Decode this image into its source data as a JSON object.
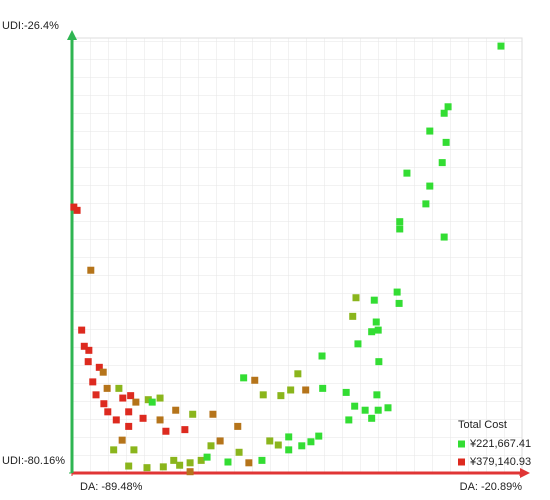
{
  "chart_data": {
    "type": "scatter",
    "xlim": [
      -89.48,
      -20.89
    ],
    "ylim": [
      -80.16,
      -26.4
    ],
    "xticks": [
      {
        "value": -89.48,
        "label": "DA: -89.48%"
      },
      {
        "value": -20.89,
        "label": "DA: -20.89%"
      }
    ],
    "yticks": [
      {
        "value": -80.16,
        "label": "UDI:-80.16%"
      },
      {
        "value": -26.4,
        "label": "UDI:-26.4%"
      }
    ],
    "axis_colors": {
      "x": "#e03535",
      "y": "#2fb552"
    },
    "grid": true,
    "legend": {
      "position": "lower right",
      "title": "Total Cost",
      "items": [
        {
          "label": "¥221,667.41",
          "color": "#33dd33"
        },
        {
          "label": "¥379,140.93",
          "color": "#dd2a1f"
        }
      ]
    },
    "series": [
      {
        "x": [
          -23.8,
          -31.9,
          -32.5,
          -34.7,
          -32.2,
          -38.2,
          -32.8,
          -34.7,
          -35.3,
          -39.3,
          -39.3,
          -32.5,
          -89.2,
          -88.7,
          -86.6,
          -39.7,
          -39.4,
          -43.2,
          -46.0,
          -46.5,
          -42.9,
          -43.6,
          -42.6,
          -45.7,
          -88.0,
          -87.6,
          -86.9,
          -87.0,
          -51.2,
          -85.3,
          -84.7,
          -63.2,
          -61.5,
          -54.9,
          -51.1,
          -42.5,
          -86.3,
          -85.8,
          -84.1,
          -82.3,
          -84.6,
          -81.7,
          -80.5,
          -79.7,
          -77.8,
          -77.2,
          -76.0,
          -73.6,
          -71.0,
          -67.9,
          -60.2,
          -57.5,
          -56.0,
          -53.7,
          -47.5,
          -46.2,
          -44.6,
          -42.6,
          -42.8,
          -41.1,
          -47.1,
          -43.6,
          -84.0,
          -82.7,
          -80.8,
          -80.8,
          -78.6,
          -76.0,
          -72.2,
          -75.1,
          -81.8,
          -83.1,
          -80.0,
          -80.8,
          -78.0,
          -75.5,
          -73.9,
          -73.0,
          -71.4,
          -71.4,
          -69.7,
          -68.8,
          -68.2,
          -66.8,
          -64.1,
          -63.9,
          -62.4,
          -60.4,
          -59.2,
          -57.9,
          -56.3,
          -56.3,
          -54.3,
          -52.9,
          -51.7,
          -65.6
        ],
        "values": [
          -27.4,
          -34.9,
          -35.7,
          -37.9,
          -39.3,
          -43.1,
          -41.8,
          -44.7,
          -46.9,
          -49.1,
          -50.0,
          -51.0,
          -47.3,
          -47.7,
          -55.1,
          -57.8,
          -59.2,
          -58.8,
          -58.5,
          -60.8,
          -61.5,
          -62.7,
          -62.5,
          -64.2,
          -62.5,
          -64.5,
          -65.0,
          -66.4,
          -65.7,
          -67.1,
          -67.7,
          -68.4,
          -68.7,
          -67.9,
          -69.7,
          -66.4,
          -68.9,
          -70.5,
          -69.7,
          -69.7,
          -71.6,
          -70.9,
          -70.6,
          -71.4,
          -71.1,
          -71.4,
          -70.9,
          -72.4,
          -72.9,
          -72.9,
          -70.5,
          -70.6,
          -69.9,
          -69.9,
          -70.2,
          -71.9,
          -72.4,
          -72.4,
          -70.5,
          -72.1,
          -73.6,
          -73.4,
          -72.6,
          -73.6,
          -72.6,
          -74.4,
          -73.4,
          -73.6,
          -74.8,
          -75.0,
          -76.1,
          -77.3,
          -77.3,
          -79.3,
          -79.5,
          -79.4,
          -78.6,
          -79.2,
          -78.9,
          -80.0,
          -78.6,
          -78.2,
          -76.8,
          -76.2,
          -74.4,
          -77.6,
          -78.9,
          -78.6,
          -76.2,
          -76.7,
          -75.7,
          -77.3,
          -76.8,
          -76.3,
          -75.6,
          -78.8
        ],
        "colors": [
          "#33dd33",
          "#33dd33",
          "#33dd33",
          "#33dd33",
          "#33dd33",
          "#33dd33",
          "#33dd33",
          "#33dd33",
          "#33dd33",
          "#33dd33",
          "#33dd33",
          "#33dd33",
          "#dd2a1f",
          "#dd2a1f",
          "#b5741a",
          "#33dd33",
          "#33dd33",
          "#33dd33",
          "#8ab51c",
          "#8ab51c",
          "#33dd33",
          "#33dd33",
          "#33dd33",
          "#33dd33",
          "#dd2a1f",
          "#dd2a1f",
          "#dd2a1f",
          "#dd2a1f",
          "#33dd33",
          "#dd2a1f",
          "#b5741a",
          "#33dd33",
          "#b5741a",
          "#8ab51c",
          "#33dd33",
          "#33dd33",
          "#dd2a1f",
          "#dd2a1f",
          "#b5741a",
          "#8ab51c",
          "#dd2a1f",
          "#dd2a1f",
          "#dd2a1f",
          "#b5741a",
          "#8ab51c",
          "#33dd33",
          "#8ab51c",
          "#b5741a",
          "#8ab51c",
          "#b5741a",
          "#8ab51c",
          "#8ab51c",
          "#8ab51c",
          "#b5741a",
          "#33dd33",
          "#33dd33",
          "#33dd33",
          "#33dd33",
          "#33dd33",
          "#33dd33",
          "#33dd33",
          "#33dd33",
          "#dd2a1f",
          "#dd2a1f",
          "#dd2a1f",
          "#dd2a1f",
          "#dd2a1f",
          "#b5741a",
          "#dd2a1f",
          "#dd2a1f",
          "#b5741a",
          "#8ab51c",
          "#8ab51c",
          "#8ab51c",
          "#8ab51c",
          "#8ab51c",
          "#8ab51c",
          "#8ab51c",
          "#8ab51c",
          "#b5741a",
          "#8ab51c",
          "#33dd33",
          "#8ab51c",
          "#b5741a",
          "#b5741a",
          "#8ab51c",
          "#b5741a",
          "#33dd33",
          "#8ab51c",
          "#8ab51c",
          "#33dd33",
          "#33dd33",
          "#33dd33",
          "#33dd33",
          "#33dd33",
          "#33dd33"
        ]
      }
    ]
  }
}
